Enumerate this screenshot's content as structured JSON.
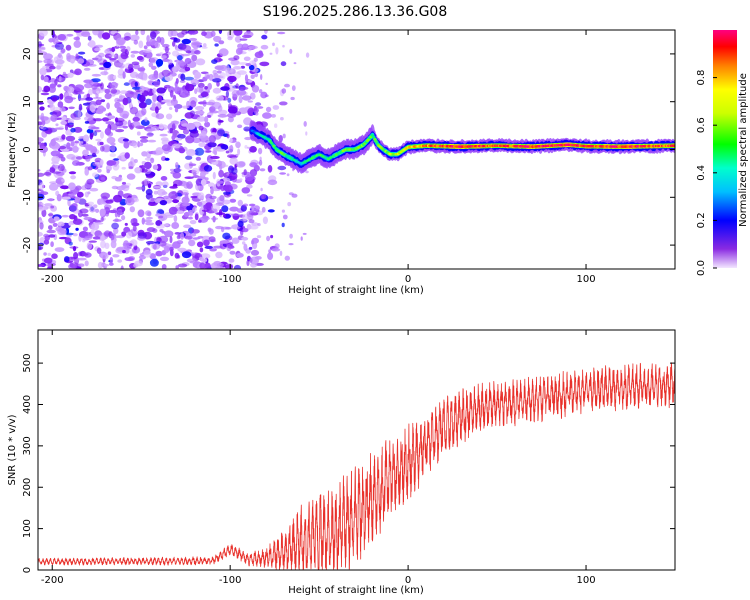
{
  "title": "S196.2025.286.13.36.G08",
  "colors": {
    "snr_line": "#e8312b",
    "plot_frame": "#000000",
    "trace_core": "#ff1a1a"
  },
  "chart_data": [
    {
      "type": "heatmap",
      "name": "spectrogram",
      "xlabel": "Height of straight line (km)",
      "ylabel": "Frequency (Hz)",
      "xlim": [
        -208,
        150
      ],
      "ylim": [
        -25,
        25
      ],
      "xticks": [
        -200,
        -100,
        0,
        100
      ],
      "yticks": [
        -20,
        -10,
        0,
        10,
        20
      ],
      "colorbar": {
        "label": "Normalized spectral amplitude",
        "range": [
          0,
          1
        ],
        "ticks": [
          0.0,
          0.2,
          0.4,
          0.6,
          0.8
        ],
        "tick_labels": [
          "0.0",
          "0.2",
          "0.4",
          "0.6",
          "0.8"
        ]
      },
      "ridge": {
        "x": [
          -88,
          -83,
          -78,
          -74,
          -70,
          -65,
          -60,
          -55,
          -50,
          -45,
          -40,
          -35,
          -30,
          -25,
          -20,
          -17,
          -14,
          -10,
          -6,
          -2,
          0,
          10,
          30,
          50,
          70,
          90,
          100,
          120,
          150
        ],
        "y": [
          4,
          3,
          2,
          0,
          -1,
          -2,
          -3,
          -2,
          -1,
          -2,
          -1,
          0,
          0,
          1,
          3,
          1,
          0,
          -1,
          -1,
          0,
          0.5,
          0.8,
          0.6,
          0.8,
          0.6,
          1.0,
          0.7,
          0.6,
          0.8
        ],
        "amp": [
          0.35,
          0.45,
          0.5,
          0.55,
          0.55,
          0.5,
          0.45,
          0.5,
          0.55,
          0.5,
          0.55,
          0.6,
          0.6,
          0.6,
          0.55,
          0.6,
          0.6,
          0.65,
          0.65,
          0.7,
          0.75,
          0.85,
          0.95,
          0.9,
          0.95,
          1.0,
          0.9,
          0.95,
          0.9
        ]
      },
      "noise_region_x": [
        -208,
        -85
      ]
    },
    {
      "type": "line",
      "name": "snr",
      "xlabel": "Height of straight line (km)",
      "ylabel": "SNR (10 * v/v)",
      "xlim": [
        -208,
        150
      ],
      "ylim": [
        0,
        580
      ],
      "xticks": [
        -200,
        -100,
        0,
        100
      ],
      "yticks": [
        0,
        100,
        200,
        300,
        400,
        500
      ],
      "trend": {
        "x": [
          -208,
          -110,
          -100,
          -95,
          -90,
          -80,
          -70,
          -60,
          -50,
          -40,
          -30,
          -20,
          -10,
          0,
          10,
          20,
          30,
          40,
          50,
          60,
          70,
          80,
          90,
          100,
          110,
          120,
          130,
          140,
          150
        ],
        "y": [
          20,
          22,
          50,
          40,
          25,
          30,
          45,
          65,
          80,
          95,
          130,
          170,
          220,
          260,
          300,
          345,
          370,
          390,
          400,
          405,
          410,
          420,
          425,
          435,
          440,
          440,
          445,
          445,
          450
        ]
      },
      "spread": {
        "x": [
          -208,
          -110,
          -100,
          -90,
          -80,
          -70,
          -60,
          -50,
          -40,
          -30,
          -20,
          -10,
          0,
          10,
          20,
          30,
          40,
          60,
          80,
          100,
          120,
          150
        ],
        "y": [
          8,
          10,
          15,
          15,
          25,
          50,
          90,
          110,
          120,
          120,
          110,
          100,
          90,
          80,
          70,
          65,
          60,
          55,
          55,
          55,
          55,
          55
        ]
      }
    }
  ]
}
